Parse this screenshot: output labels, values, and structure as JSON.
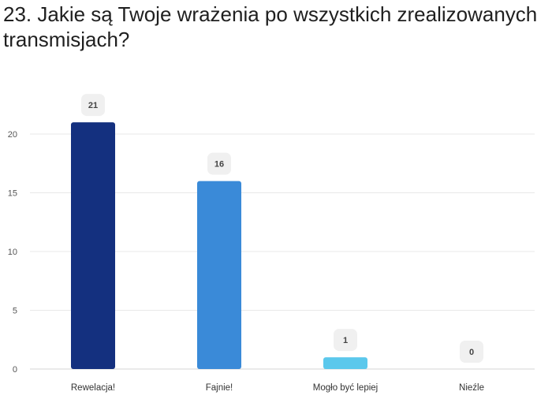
{
  "page": {
    "title": "23. Jakie są Twoje wrażenia po wszystkich zrealizowanych transmisjach?"
  },
  "chart_data": {
    "type": "bar",
    "title": "23. Jakie są Twoje wrażenia po wszystkich zrealizowanych transmisjach?",
    "categories": [
      "Rewelacja!",
      "Fajnie!",
      "Mogło być lepiej",
      "Nieźle"
    ],
    "values": [
      21,
      16,
      1,
      0
    ],
    "colors": [
      "#14307f",
      "#3a8ad8",
      "#5bc8ec",
      "#5bc8ec"
    ],
    "yticks": [
      0,
      5,
      10,
      15,
      20
    ],
    "ylim": [
      0,
      20
    ],
    "grid": true,
    "legend": "none",
    "label_bg": "#f0f0f0"
  }
}
